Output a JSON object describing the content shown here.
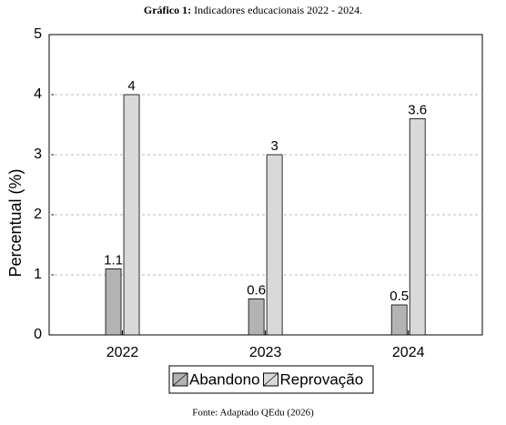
{
  "chart_data": {
    "type": "bar",
    "title_prefix": "Gráfico 1:",
    "title": "Indicadores educacionais 2022 - 2024.",
    "y_label": "Percentual (%)",
    "source": "Fonte: Adaptado QEdu (2026)",
    "categories": [
      "2022",
      "2023",
      "2024"
    ],
    "series": [
      {
        "name": "Abandono",
        "color": "#b3b3b3",
        "values": [
          1.1,
          0.6,
          0.5
        ]
      },
      {
        "name": "Reprovação",
        "color": "#d9d9d9",
        "values": [
          4,
          3,
          3.6
        ]
      }
    ],
    "ylim": [
      0,
      5
    ],
    "yticks": [
      0,
      1,
      2,
      3,
      4,
      5
    ],
    "grid": true
  }
}
